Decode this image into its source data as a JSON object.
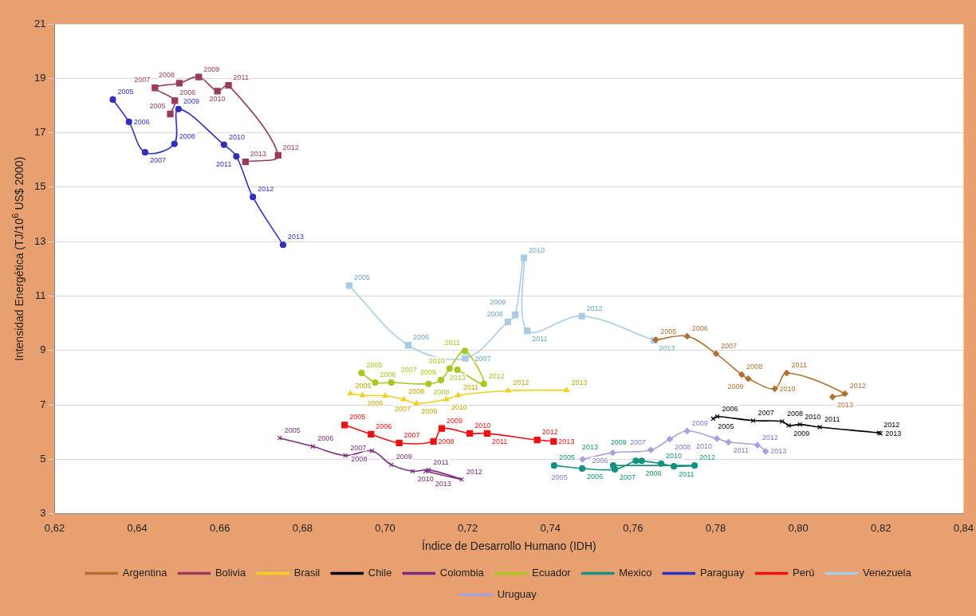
{
  "chart_data": {
    "type": "line",
    "xlabel": "Índice de Desarrollo Humano (IDH)",
    "ylabel": "Intensidad Energética  (TJ/10$^{6}$ US$ 2000)",
    "xlim": [
      0.62,
      0.84
    ],
    "xticks": [
      {
        "value": 0.62,
        "label": "0,62"
      },
      {
        "value": 0.64,
        "label": "0,64"
      },
      {
        "value": 0.66,
        "label": "0,66"
      },
      {
        "value": 0.68,
        "label": "0,68"
      },
      {
        "value": 0.7,
        "label": "0,70"
      },
      {
        "value": 0.72,
        "label": "0,72"
      },
      {
        "value": 0.74,
        "label": "0,74"
      },
      {
        "value": 0.76,
        "label": "0,76"
      },
      {
        "value": 0.78,
        "label": "0,78"
      },
      {
        "value": 0.8,
        "label": "0,80"
      },
      {
        "value": 0.82,
        "label": "0,82"
      },
      {
        "value": 0.84,
        "label": "0,84"
      }
    ],
    "ylim": [
      3,
      21
    ],
    "yticks": [
      3,
      5,
      7,
      9,
      11,
      13,
      15,
      17,
      19,
      21
    ],
    "grid": "y",
    "legend": "bottom",
    "series": [
      {
        "name": "Argentina",
        "color": "#b07030",
        "marker": "diamond",
        "x": [
          0.7655,
          0.7731,
          0.7801,
          0.7863,
          0.7879,
          0.7943,
          0.7972,
          0.8113,
          0.8083
        ],
        "values": [
          9.39,
          9.52,
          8.88,
          8.11,
          7.96,
          7.59,
          8.17,
          7.41,
          7.29
        ]
      },
      {
        "name": "Bolivia",
        "color": "#9b3b5b",
        "marker": "square",
        "x": [
          0.648,
          0.6491,
          0.6443,
          0.6502,
          0.6549,
          0.6594,
          0.6621,
          0.6741,
          0.6662
        ],
        "values": [
          17.69,
          18.18,
          18.65,
          18.82,
          19.05,
          18.53,
          18.74,
          16.17,
          15.93
        ]
      },
      {
        "name": "Brasil",
        "color": "#f0d020",
        "marker": "triangle",
        "x": [
          0.6916,
          0.6945,
          0.7,
          0.7045,
          0.7076,
          0.7148,
          0.7177,
          0.7298,
          0.7439
        ],
        "values": [
          7.41,
          7.35,
          7.33,
          7.2,
          7.05,
          7.2,
          7.35,
          7.52,
          7.54
        ]
      },
      {
        "name": "Chile",
        "color": "#000000",
        "marker": "cross",
        "x": [
          0.7794,
          0.7804,
          0.7891,
          0.7961,
          0.7977,
          0.8004,
          0.8052,
          0.8195,
          0.8199
        ],
        "values": [
          6.49,
          6.57,
          6.42,
          6.39,
          6.24,
          6.28,
          6.18,
          5.97,
          5.95
        ]
      },
      {
        "name": "Colombia",
        "color": "#7b2b7b",
        "marker": "cross",
        "x": [
          0.6745,
          0.6825,
          0.6904,
          0.6968,
          0.7015,
          0.7067,
          0.7105,
          0.7185,
          0.7098
        ],
        "values": [
          5.78,
          5.47,
          5.14,
          5.31,
          4.8,
          4.56,
          4.61,
          4.26,
          4.56
        ]
      },
      {
        "name": "Ecuador",
        "color": "#a8c820",
        "marker": "circle",
        "x": [
          0.6943,
          0.6976,
          0.7015,
          0.7105,
          0.7135,
          0.7156,
          0.7193,
          0.7239,
          0.7175
        ],
        "values": [
          8.17,
          7.82,
          7.82,
          7.77,
          7.91,
          8.33,
          8.98,
          7.77,
          8.29
        ]
      },
      {
        "name": "Mexico",
        "color": "#169080",
        "marker": "circle",
        "x": [
          0.7409,
          0.7477,
          0.7556,
          0.7607,
          0.7621,
          0.7668,
          0.7699,
          0.7749,
          0.7552
        ],
        "values": [
          4.77,
          4.66,
          4.63,
          4.94,
          4.94,
          4.84,
          4.74,
          4.77,
          4.77
        ]
      },
      {
        "name": "Paraguay",
        "color": "#3030c0",
        "marker": "circle",
        "x": [
          0.6341,
          0.638,
          0.6419,
          0.649,
          0.65,
          0.661,
          0.664,
          0.668,
          0.6753
        ],
        "values": [
          18.22,
          17.4,
          16.28,
          16.59,
          17.87,
          16.56,
          16.13,
          14.64,
          12.88
        ]
      },
      {
        "name": "Perú",
        "color": "#ee1111",
        "marker": "square",
        "x": [
          0.6902,
          0.6966,
          0.7034,
          0.7117,
          0.7137,
          0.7205,
          0.7247,
          0.7368,
          0.7408
        ],
        "values": [
          6.26,
          5.92,
          5.6,
          5.66,
          6.13,
          5.95,
          5.95,
          5.71,
          5.66
        ]
      },
      {
        "name": "Venezuela",
        "color": "#a8cce8",
        "marker": "square",
        "x": [
          0.6913,
          0.7056,
          0.7194,
          0.7297,
          0.7315,
          0.7336,
          0.7344,
          0.7476,
          0.7651
        ],
        "values": [
          11.38,
          9.19,
          8.71,
          10.05,
          10.31,
          12.4,
          9.72,
          10.26,
          9.37
        ]
      },
      {
        "name": "Uruguay",
        "color": "#a8a0e0",
        "marker": "diamond",
        "x": [
          0.7478,
          0.7551,
          0.7643,
          0.7689,
          0.7731,
          0.7803,
          0.7831,
          0.7901,
          0.7921
        ],
        "values": [
          5.0,
          5.24,
          5.34,
          5.74,
          6.04,
          5.76,
          5.63,
          5.52,
          5.29
        ]
      }
    ],
    "annotations": [
      {
        "text": "2005",
        "x": 0.7655,
        "y": 9.39
      },
      {
        "text": "2006",
        "x": 0.7731,
        "y": 9.52
      },
      {
        "text": "2007",
        "x": 0.7801,
        "y": 8.88
      },
      {
        "text": "2008",
        "x": 0.7863,
        "y": 8.11
      },
      {
        "text": "2009",
        "x": 0.7879,
        "y": 7.96
      },
      {
        "text": "2010",
        "x": 0.7943,
        "y": 7.59
      },
      {
        "text": "2011",
        "x": 0.7972,
        "y": 8.17
      },
      {
        "text": "2012",
        "x": 0.8113,
        "y": 7.41
      },
      {
        "text": "2013",
        "x": 0.8083,
        "y": 7.29
      },
      {
        "text": "2005",
        "x": 0.648,
        "y": 17.69
      },
      {
        "text": "2006",
        "x": 0.6491,
        "y": 18.18
      },
      {
        "text": "2007",
        "x": 0.6443,
        "y": 18.65
      },
      {
        "text": "2008",
        "x": 0.6502,
        "y": 18.82
      },
      {
        "text": "2009",
        "x": 0.6549,
        "y": 19.05
      },
      {
        "text": "2010",
        "x": 0.6594,
        "y": 18.53
      },
      {
        "text": "2011",
        "x": 0.6621,
        "y": 18.74
      },
      {
        "text": "2012",
        "x": 0.6741,
        "y": 16.17
      },
      {
        "text": "2013",
        "x": 0.6662,
        "y": 15.93
      },
      {
        "text": "2005",
        "x": 0.6916,
        "y": 7.41
      },
      {
        "text": "2006",
        "x": 0.6945,
        "y": 7.35
      },
      {
        "text": "2007",
        "x": 0.7,
        "y": 7.33
      },
      {
        "text": "2008",
        "x": 0.7045,
        "y": 7.2
      },
      {
        "text": "2009",
        "x": 0.7076,
        "y": 7.05
      },
      {
        "text": "2010",
        "x": 0.7148,
        "y": 7.2
      },
      {
        "text": "2011",
        "x": 0.7177,
        "y": 7.35
      },
      {
        "text": "2012",
        "x": 0.7298,
        "y": 7.52
      },
      {
        "text": "2013",
        "x": 0.7439,
        "y": 7.54
      },
      {
        "text": "2005",
        "x": 0.7794,
        "y": 6.49
      },
      {
        "text": "2006",
        "x": 0.7804,
        "y": 6.57
      },
      {
        "text": "2007",
        "x": 0.7891,
        "y": 6.42
      },
      {
        "text": "2008",
        "x": 0.7961,
        "y": 6.39
      },
      {
        "text": "2009",
        "x": 0.7977,
        "y": 6.24
      },
      {
        "text": "2010",
        "x": 0.8004,
        "y": 6.28
      },
      {
        "text": "2011",
        "x": 0.8052,
        "y": 6.18
      },
      {
        "text": "2012",
        "x": 0.8195,
        "y": 5.97
      },
      {
        "text": "2013",
        "x": 0.8199,
        "y": 5.95
      },
      {
        "text": "2005",
        "x": 0.6745,
        "y": 5.78
      },
      {
        "text": "2006",
        "x": 0.6825,
        "y": 5.47
      },
      {
        "text": "2007",
        "x": 0.6904,
        "y": 5.14
      },
      {
        "text": "2008",
        "x": 0.6968,
        "y": 5.31
      },
      {
        "text": "2009",
        "x": 0.7015,
        "y": 4.8
      },
      {
        "text": "2010",
        "x": 0.7067,
        "y": 4.56
      },
      {
        "text": "2011",
        "x": 0.7105,
        "y": 4.61
      },
      {
        "text": "2012",
        "x": 0.7185,
        "y": 4.26
      },
      {
        "text": "2013",
        "x": 0.7098,
        "y": 4.56
      },
      {
        "text": "2005",
        "x": 0.6943,
        "y": 8.17
      },
      {
        "text": "2006",
        "x": 0.6976,
        "y": 7.82
      },
      {
        "text": "2007",
        "x": 0.7015,
        "y": 7.82
      },
      {
        "text": "2008",
        "x": 0.7105,
        "y": 7.77
      },
      {
        "text": "2009",
        "x": 0.7135,
        "y": 7.91
      },
      {
        "text": "2010",
        "x": 0.7156,
        "y": 8.33
      },
      {
        "text": "2011",
        "x": 0.7193,
        "y": 8.98
      },
      {
        "text": "2012",
        "x": 0.7239,
        "y": 7.77
      },
      {
        "text": "2013",
        "x": 0.7175,
        "y": 8.29
      },
      {
        "text": "2005",
        "x": 0.7409,
        "y": 4.77
      },
      {
        "text": "2006",
        "x": 0.7477,
        "y": 4.66
      },
      {
        "text": "2007",
        "x": 0.7556,
        "y": 4.63
      },
      {
        "text": "2008",
        "x": 0.7607,
        "y": 4.94
      },
      {
        "text": "2009",
        "x": 0.7621,
        "y": 4.94
      },
      {
        "text": "2010",
        "x": 0.7668,
        "y": 4.84
      },
      {
        "text": "2011",
        "x": 0.7699,
        "y": 4.74
      },
      {
        "text": "2012",
        "x": 0.7749,
        "y": 4.77
      },
      {
        "text": "2013",
        "x": 0.7552,
        "y": 4.77
      },
      {
        "text": "2005",
        "x": 0.6341,
        "y": 18.22
      },
      {
        "text": "2006",
        "x": 0.638,
        "y": 17.4
      },
      {
        "text": "2007",
        "x": 0.6419,
        "y": 16.28
      },
      {
        "text": "2008",
        "x": 0.649,
        "y": 16.59
      },
      {
        "text": "2009",
        "x": 0.65,
        "y": 17.87
      },
      {
        "text": "2010",
        "x": 0.661,
        "y": 16.56
      },
      {
        "text": "2011",
        "x": 0.664,
        "y": 16.13
      },
      {
        "text": "2012",
        "x": 0.668,
        "y": 14.64
      },
      {
        "text": "2013",
        "x": 0.6753,
        "y": 12.88
      },
      {
        "text": "2005",
        "x": 0.6902,
        "y": 6.26
      },
      {
        "text": "2006",
        "x": 0.6966,
        "y": 5.92
      },
      {
        "text": "2007",
        "x": 0.7034,
        "y": 5.6
      },
      {
        "text": "2008",
        "x": 0.7117,
        "y": 5.66
      },
      {
        "text": "2009",
        "x": 0.7137,
        "y": 6.13
      },
      {
        "text": "2010",
        "x": 0.7205,
        "y": 5.95
      },
      {
        "text": "2011",
        "x": 0.7247,
        "y": 5.95
      },
      {
        "text": "2012",
        "x": 0.7368,
        "y": 5.71
      },
      {
        "text": "2013",
        "x": 0.7408,
        "y": 5.66
      },
      {
        "text": "2005",
        "x": 0.6913,
        "y": 11.38
      },
      {
        "text": "2006",
        "x": 0.7056,
        "y": 9.19
      },
      {
        "text": "2007",
        "x": 0.7194,
        "y": 8.71
      },
      {
        "text": "2008",
        "x": 0.7297,
        "y": 10.05
      },
      {
        "text": "2009",
        "x": 0.7315,
        "y": 10.31
      },
      {
        "text": "2010",
        "x": 0.7336,
        "y": 12.4
      },
      {
        "text": "2011",
        "x": 0.7344,
        "y": 9.72
      },
      {
        "text": "2012",
        "x": 0.7476,
        "y": 10.26
      },
      {
        "text": "2013",
        "x": 0.7651,
        "y": 9.37
      },
      {
        "text": "2005",
        "x": 0.7478,
        "y": 5.0
      },
      {
        "text": "2006",
        "x": 0.7551,
        "y": 5.24
      },
      {
        "text": "2007",
        "x": 0.7643,
        "y": 5.34
      },
      {
        "text": "2008",
        "x": 0.7689,
        "y": 5.74
      },
      {
        "text": "2009",
        "x": 0.7731,
        "y": 6.04
      },
      {
        "text": "2010",
        "x": 0.7803,
        "y": 5.76
      },
      {
        "text": "2011",
        "x": 0.7831,
        "y": 5.63
      },
      {
        "text": "2012",
        "x": 0.7901,
        "y": 5.52
      },
      {
        "text": "2013",
        "x": 0.7921,
        "y": 5.29
      }
    ]
  }
}
